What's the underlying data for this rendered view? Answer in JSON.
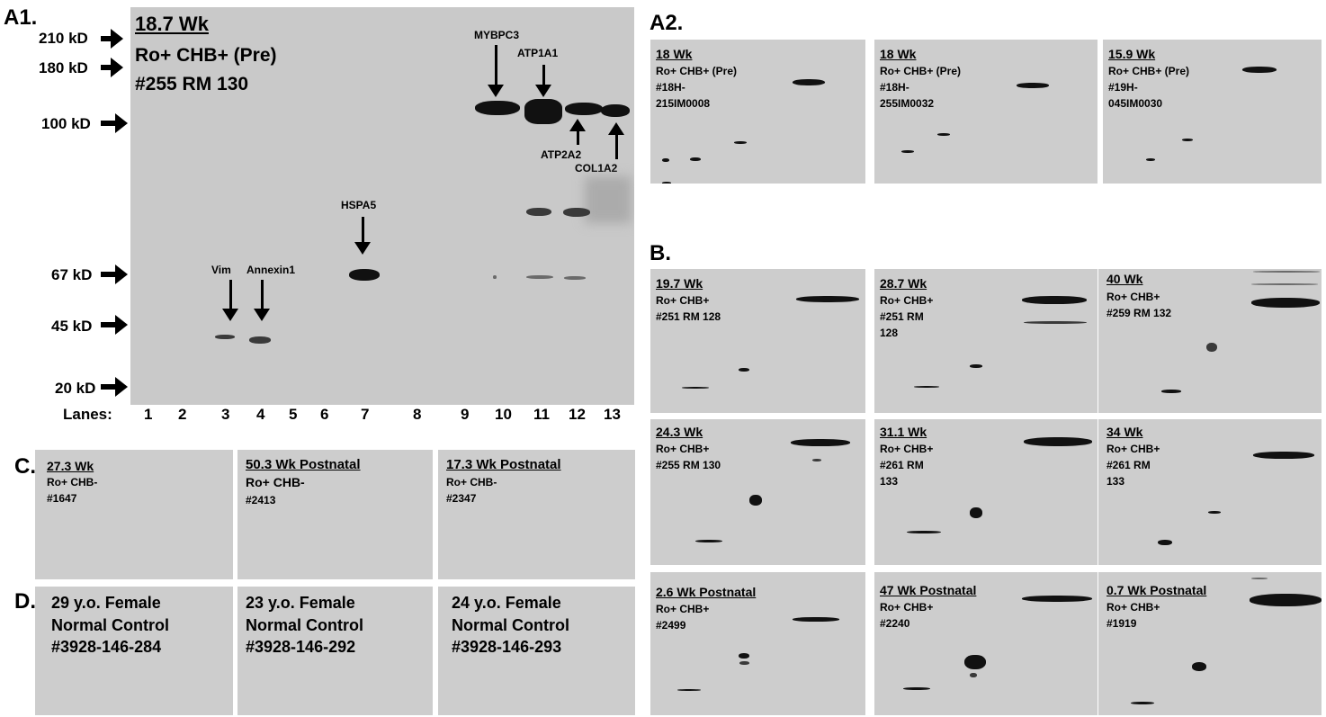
{
  "section_labels": {
    "a1": "A1.",
    "a2": "A2.",
    "b": "B.",
    "c": "C.",
    "d": "D."
  },
  "a1": {
    "age": "18.7 Wk",
    "line2": "Ro+ CHB+ (Pre)",
    "line3": "#255 RM 130",
    "markers": [
      "210 kD",
      "180 kD",
      "100 kD",
      "67 kD",
      "45 kD",
      "20 kD"
    ],
    "proteins": {
      "mybpc3": "MYBPC3",
      "atp1a1": "ATP1A1",
      "atp2a2": "ATP2A2",
      "col1a2": "COL1A2",
      "hspa5": "HSPA5",
      "vim": "Vim",
      "annexin1": "Annexin1"
    },
    "lanes_label": "Lanes:",
    "lanes": [
      "1",
      "2",
      "3",
      "4",
      "5",
      "6",
      "7",
      "8",
      "9",
      "10",
      "11",
      "12",
      "13"
    ]
  },
  "a2": [
    {
      "age": "18 Wk",
      "line2": "Ro+ CHB+ (Pre)",
      "line3": "#18H-",
      "line4": "215IM0008"
    },
    {
      "age": "18 Wk",
      "line2": "Ro+ CHB+ (Pre)",
      "line3": "#18H-",
      "line4": "255IM0032"
    },
    {
      "age": "15.9 Wk",
      "line2": "Ro+ CHB+ (Pre)",
      "line3": "#19H-",
      "line4": "045IM0030"
    }
  ],
  "b": [
    {
      "age": "19.7 Wk",
      "line2": "Ro+ CHB+",
      "line3": "#251 RM 128",
      "line4": ""
    },
    {
      "age": "28.7 Wk",
      "line2": "Ro+ CHB+",
      "line3": "#251 RM",
      "line4": "128"
    },
    {
      "age": "40 Wk",
      "line2": "Ro+ CHB+",
      "line3": "#259 RM 132",
      "line4": ""
    },
    {
      "age": "24.3 Wk",
      "line2": "Ro+ CHB+",
      "line3": "#255 RM 130",
      "line4": ""
    },
    {
      "age": "31.1 Wk",
      "line2": "Ro+ CHB+",
      "line3": "#261 RM",
      "line4": "133"
    },
    {
      "age": "34 Wk",
      "line2": "Ro+ CHB+",
      "line3": "#261 RM",
      "line4": "133"
    },
    {
      "age": "2.6 Wk Postnatal",
      "line2": "Ro+ CHB+",
      "line3": "#2499",
      "line4": ""
    },
    {
      "age": "47 Wk Postnatal",
      "line2": "Ro+ CHB+",
      "line3": "#2240",
      "line4": ""
    },
    {
      "age": "0.7 Wk Postnatal",
      "line2": "Ro+ CHB+",
      "line3": "#1919",
      "line4": ""
    }
  ],
  "c": [
    {
      "age": "27.3 Wk",
      "line2": "Ro+ CHB-",
      "line3": "#1647"
    },
    {
      "age": "50.3 Wk Postnatal",
      "line2": "Ro+ CHB-",
      "line3": "#2413"
    },
    {
      "age": "17.3 Wk Postnatal",
      "line2": "Ro+ CHB-",
      "line3": "#2347"
    }
  ],
  "d": [
    {
      "line1": "29 y.o. Female",
      "line2": "Normal Control",
      "line3": "#3928-146-284"
    },
    {
      "line1": "23 y.o. Female",
      "line2": "Normal Control",
      "line3": "#3928-146-292"
    },
    {
      "line1": "24 y.o. Female",
      "line2": "Normal Control",
      "line3": "#3928-146-293"
    }
  ]
}
